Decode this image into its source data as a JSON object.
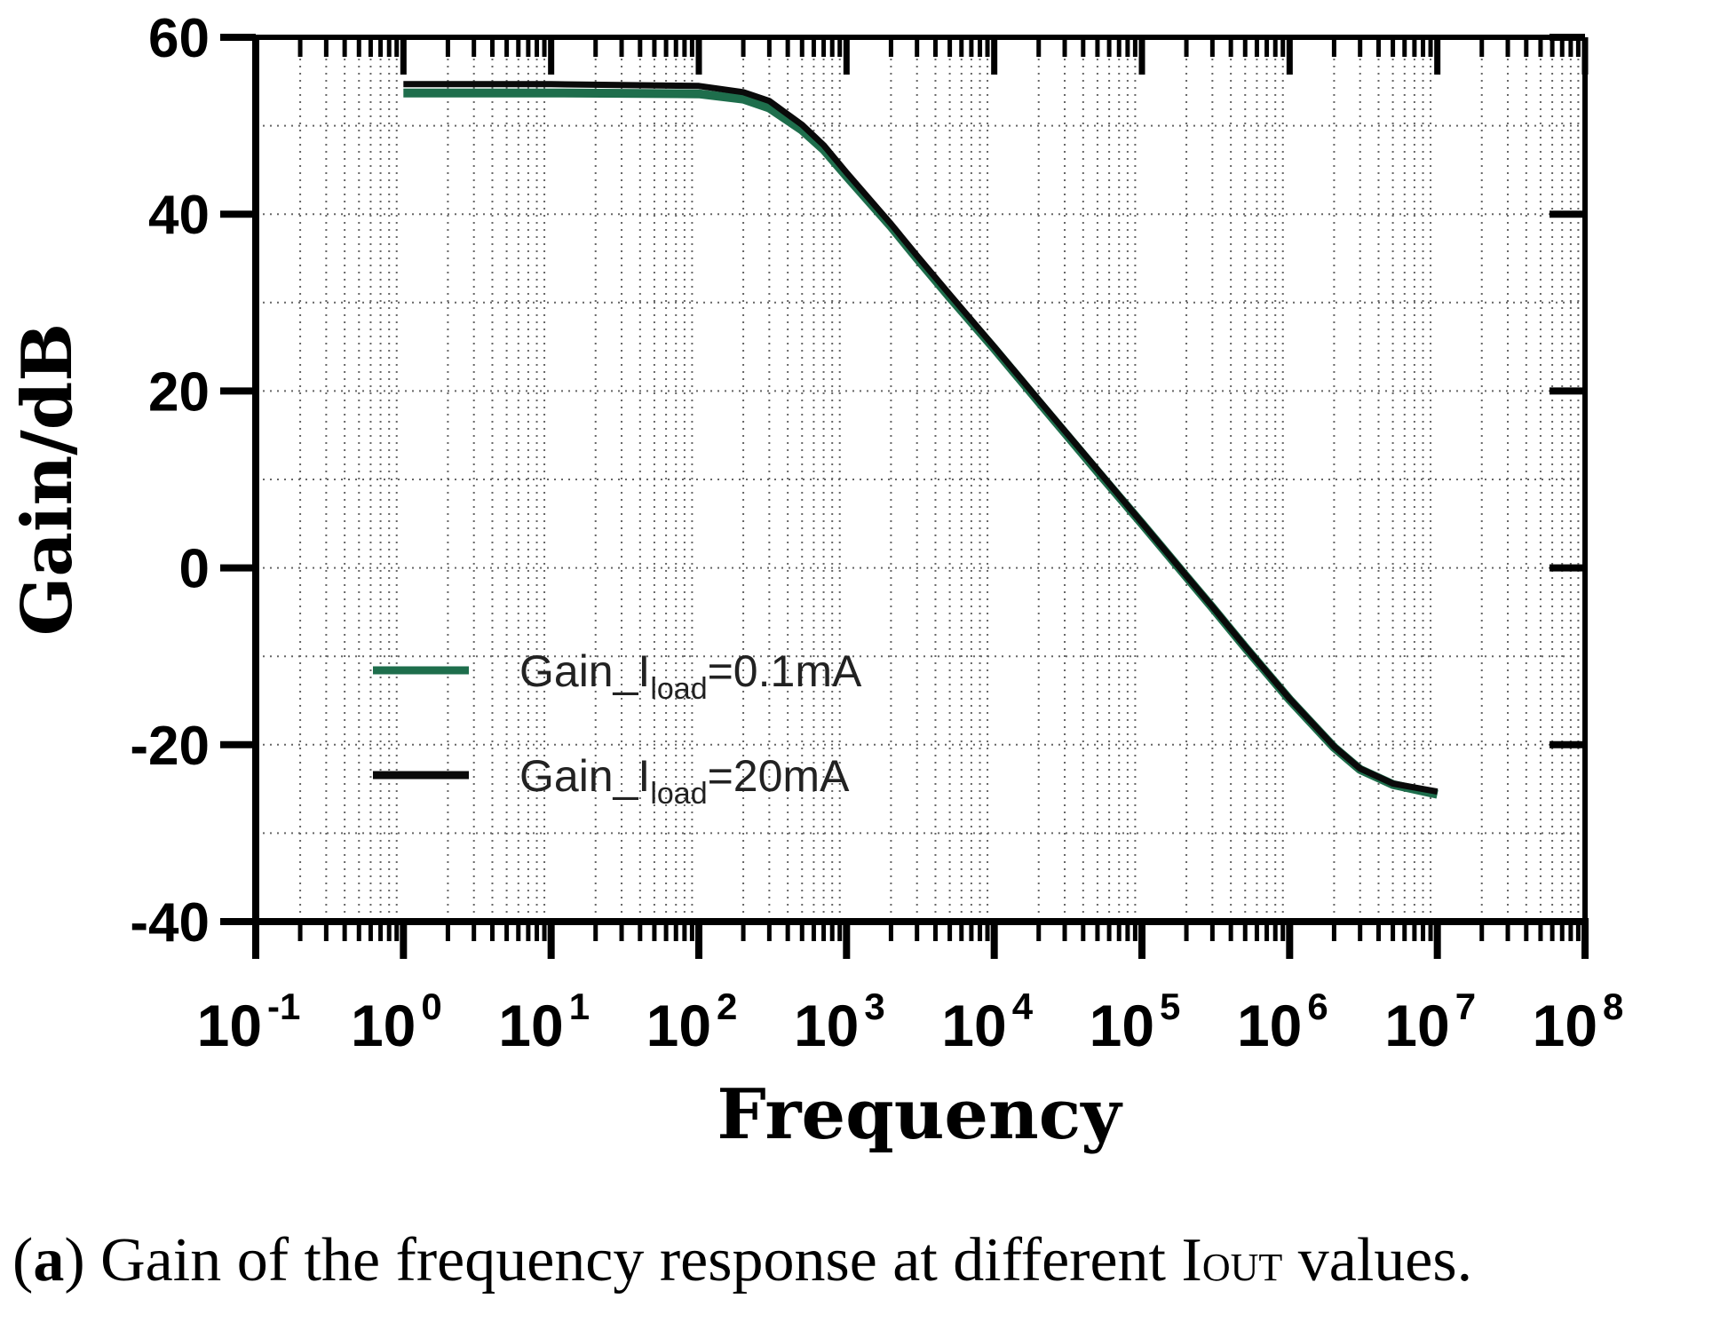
{
  "chart_data": {
    "type": "line",
    "title": "",
    "xlabel": "Frequency",
    "ylabel": "Gain/dB",
    "xscale": "log",
    "xlim": [
      0.1,
      100000000
    ],
    "ylim": [
      -40,
      60
    ],
    "yticks": [
      60,
      40,
      20,
      0,
      -20,
      -40
    ],
    "ytick_labels": [
      "60",
      "40",
      "20",
      "0",
      "-20",
      "-40"
    ],
    "xticks": [
      {
        "base": "10",
        "exp": "-1",
        "value": 0.1
      },
      {
        "base": "10",
        "exp": "0",
        "value": 1
      },
      {
        "base": "10",
        "exp": "1",
        "value": 10
      },
      {
        "base": "10",
        "exp": "2",
        "value": 100
      },
      {
        "base": "10",
        "exp": "3",
        "value": 1000
      },
      {
        "base": "10",
        "exp": "4",
        "value": 10000
      },
      {
        "base": "10",
        "exp": "5",
        "value": 100000
      },
      {
        "base": "10",
        "exp": "6",
        "value": 1000000
      },
      {
        "base": "10",
        "exp": "7",
        "value": 10000000
      },
      {
        "base": "10",
        "exp": "8",
        "value": 100000000
      }
    ],
    "grid": true,
    "legend_position": "lower-left",
    "series": [
      {
        "name": "Gain_Iload=0.1mA",
        "label_main": "Gain_I",
        "label_sub": "load",
        "label_tail": "=0.1mA",
        "color": "#1e6e4c",
        "x": [
          1,
          10,
          100,
          200,
          300,
          500,
          700,
          1000,
          2000,
          3000,
          5000,
          10000,
          20000,
          30000,
          50000,
          100000,
          200000,
          300000,
          500000,
          1000000,
          2000000,
          3000000,
          5000000,
          10000000
        ],
        "y": [
          53.7,
          53.7,
          53.6,
          53.0,
          52.0,
          49.5,
          47.3,
          44.3,
          38.6,
          35.0,
          30.6,
          24.8,
          18.8,
          15.3,
          10.9,
          5.0,
          -1.0,
          -4.5,
          -9.0,
          -14.9,
          -20.3,
          -22.8,
          -24.5,
          -25.6
        ]
      },
      {
        "name": "Gain_Iload=20mA",
        "label_main": "Gain_I",
        "label_sub": "load",
        "label_tail": "=20mA",
        "color": "#0a0a0a",
        "x": [
          1,
          10,
          100,
          200,
          300,
          500,
          700,
          1000,
          2000,
          3000,
          5000,
          10000,
          20000,
          30000,
          50000,
          100000,
          200000,
          300000,
          500000,
          1000000,
          2000000,
          3000000,
          5000000,
          10000000
        ],
        "y": [
          54.7,
          54.7,
          54.5,
          53.8,
          52.8,
          50.1,
          47.8,
          44.7,
          38.9,
          35.3,
          30.9,
          25.0,
          19.0,
          15.5,
          11.1,
          5.1,
          -0.9,
          -4.4,
          -8.9,
          -14.8,
          -20.2,
          -22.7,
          -24.4,
          -25.3
        ]
      }
    ]
  },
  "caption": {
    "open_paren": "(",
    "letter": "a",
    "text_before": ") Gain of the frequency response at different I",
    "smallcaps": "OUT",
    "text_after": " values."
  }
}
